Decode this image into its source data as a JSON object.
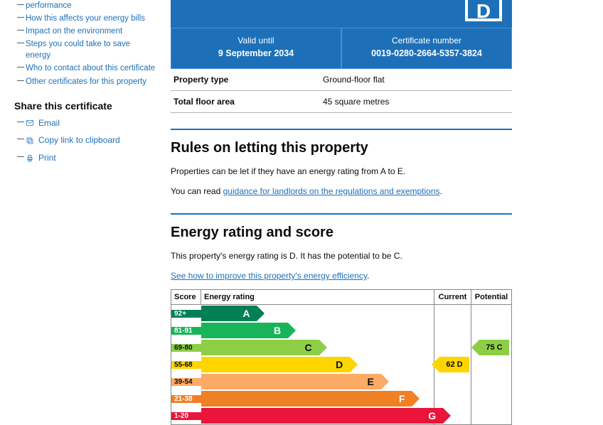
{
  "nav": {
    "items": [
      "performance",
      "How this affects your energy bills",
      "Impact on the environment",
      "Steps you could take to save energy",
      "Who to contact about this certificate",
      "Other certificates for this property"
    ]
  },
  "share": {
    "heading": "Share this certificate",
    "email": "Email",
    "copy": "Copy link to clipboard",
    "print": "Print"
  },
  "banner": {
    "rating": "D",
    "valid_label": "Valid until",
    "valid_value": "9 September 2034",
    "cert_label": "Certificate number",
    "cert_value": "0019-0280-2664-5357-3824"
  },
  "property": {
    "rows": [
      {
        "k": "Property type",
        "v": "Ground-floor flat"
      },
      {
        "k": "Total floor area",
        "v": "45 square metres"
      }
    ]
  },
  "rules": {
    "heading": "Rules on letting this property",
    "p1": "Properties can be let if they have an energy rating from A to E.",
    "p2_before": "You can read ",
    "p2_link": "guidance for landlords on the regulations and exemptions",
    "p2_after": "."
  },
  "rating": {
    "heading": "Energy rating and score",
    "summary": "This property's energy rating is D. It has the potential to be C.",
    "improve_link": "See how to improve this property's energy efficiency",
    "improve_after": "."
  },
  "chart": {
    "head": {
      "score": "Score",
      "rating": "Energy rating",
      "current": "Current",
      "potential": "Potential"
    },
    "bands": [
      {
        "label": "92+",
        "letter": "A",
        "cls": "a",
        "pct": 18
      },
      {
        "label": "81-91",
        "letter": "B",
        "cls": "b",
        "pct": 28
      },
      {
        "label": "69-80",
        "letter": "C",
        "cls": "c",
        "pct": 38
      },
      {
        "label": "55-68",
        "letter": "D",
        "cls": "d",
        "pct": 48
      },
      {
        "label": "39-54",
        "letter": "E",
        "cls": "e",
        "pct": 58
      },
      {
        "label": "21-38",
        "letter": "F",
        "cls": "f",
        "pct": 68
      },
      {
        "label": "1-20",
        "letter": "G",
        "cls": "g",
        "pct": 78
      }
    ],
    "current": {
      "text": "62 D",
      "band_index": 3,
      "cls": "d"
    },
    "potential": {
      "text": "75 C",
      "band_index": 2,
      "cls": "c"
    },
    "colors": {
      "a": "#008054",
      "b": "#19b459",
      "c": "#8dce46",
      "d": "#ffd500",
      "e": "#fcaa65",
      "f": "#ef8023",
      "g": "#e9153b"
    }
  }
}
